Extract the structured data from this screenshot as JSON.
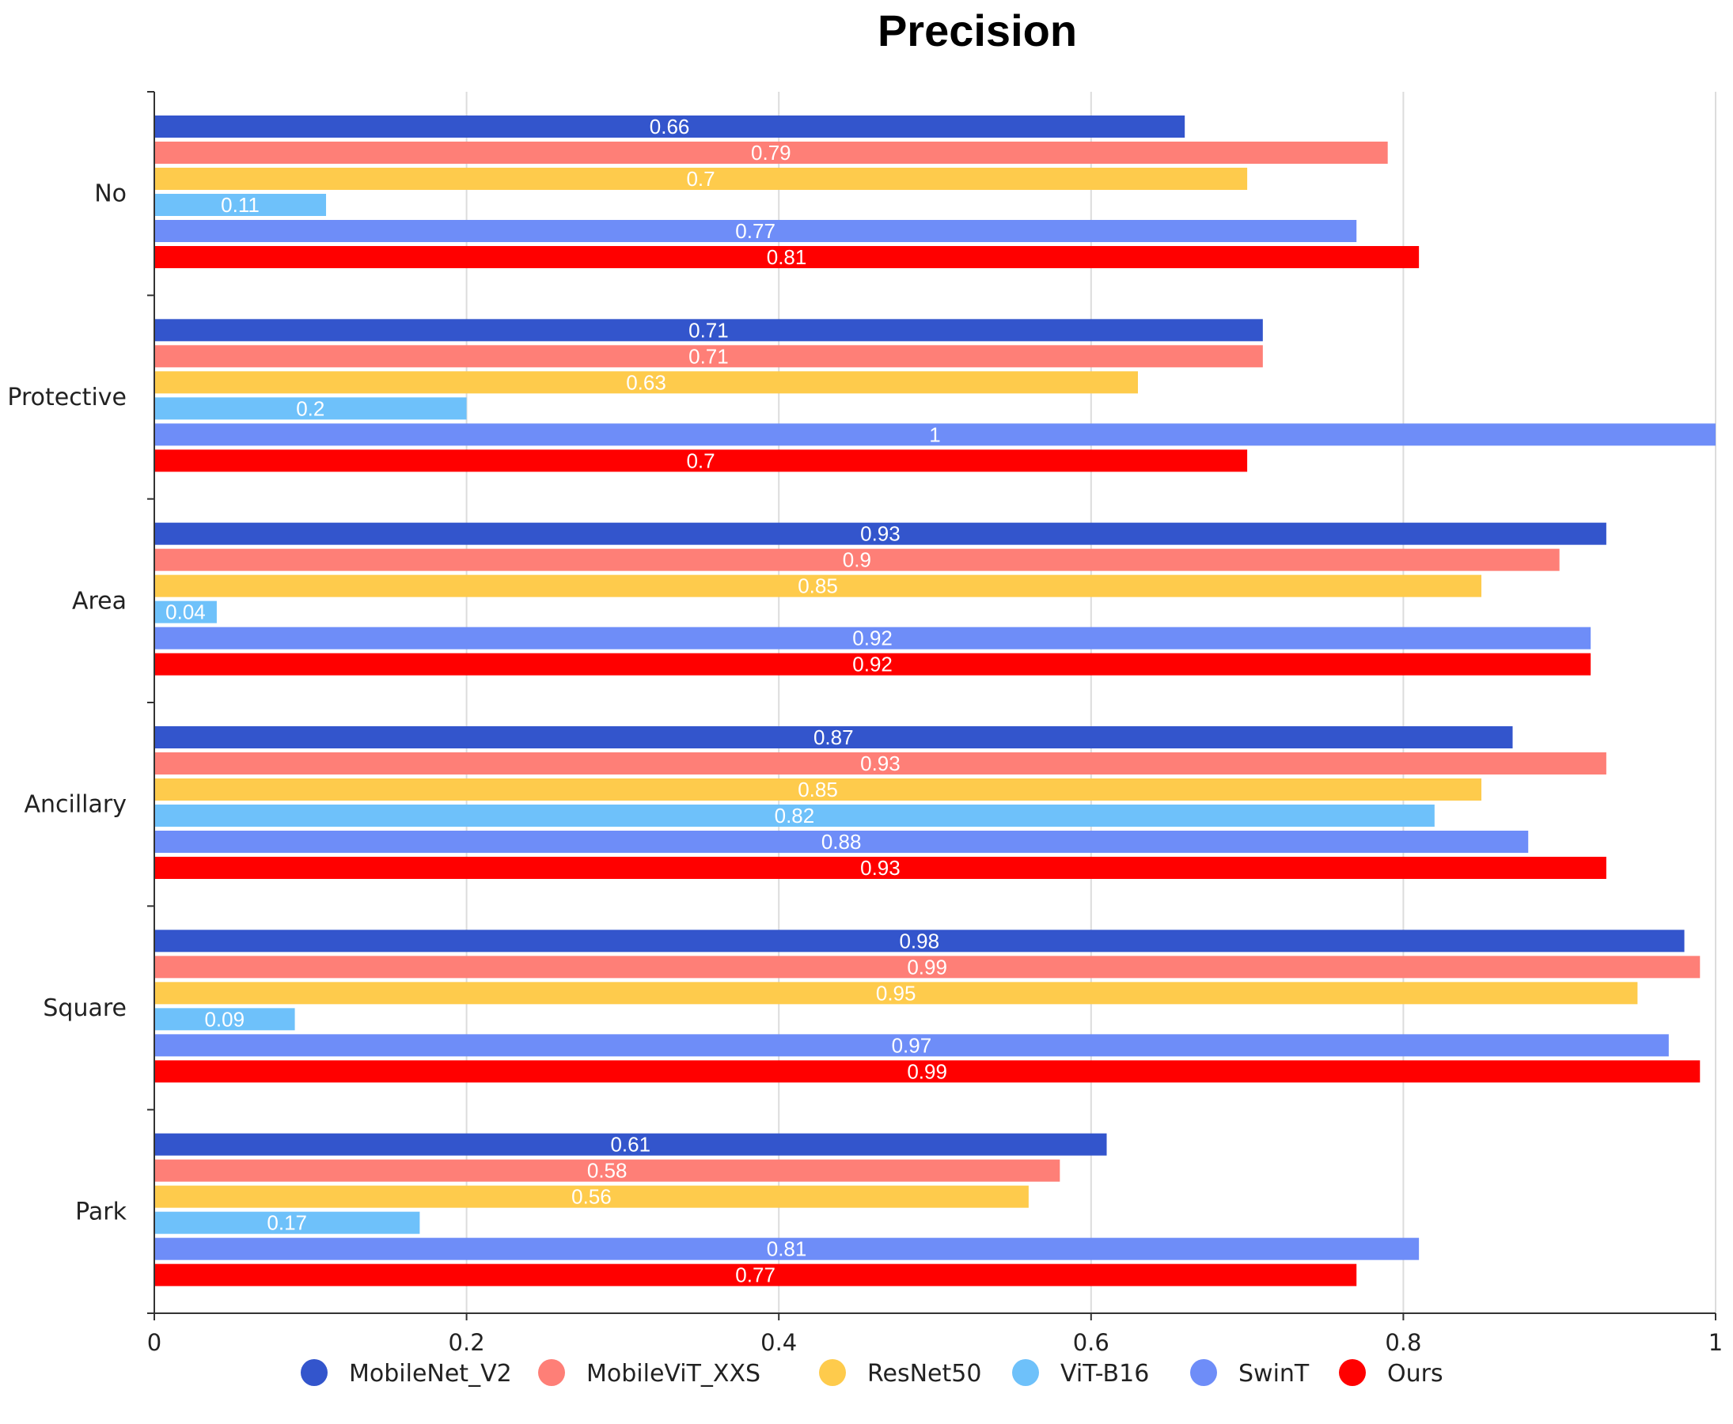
{
  "chart_data": {
    "type": "bar",
    "orientation": "horizontal",
    "title": "Precision",
    "xlabel": "",
    "ylabel": "",
    "xlim": [
      0,
      1
    ],
    "xticks": [
      0,
      0.2,
      0.4,
      0.6,
      0.8,
      1
    ],
    "xtick_labels": [
      "0",
      "0.2",
      "0.4",
      "0.6",
      "0.8",
      "1"
    ],
    "grid": true,
    "legend_position": "bottom",
    "categories": [
      "No",
      "Protective",
      "Area",
      "Ancillary",
      "Square",
      "Park"
    ],
    "series": [
      {
        "name": "MobileNet_V2",
        "color": "#3355cc",
        "values": [
          0.66,
          0.71,
          0.93,
          0.87,
          0.98,
          0.61
        ],
        "labels": [
          "0.66",
          "0.71",
          "0.93",
          "0.87",
          "0.98",
          "0.61"
        ]
      },
      {
        "name": "MobileViT_XXS",
        "color": "#fe7f77",
        "values": [
          0.79,
          0.71,
          0.9,
          0.93,
          0.99,
          0.58
        ],
        "labels": [
          "0.79",
          "0.71",
          "0.9",
          "0.93",
          "0.99",
          "0.58"
        ]
      },
      {
        "name": "ResNet50",
        "color": "#fecb4c",
        "values": [
          0.7,
          0.63,
          0.85,
          0.85,
          0.95,
          0.56
        ],
        "labels": [
          "0.7",
          "0.63",
          "0.85",
          "0.85",
          "0.95",
          "0.56"
        ]
      },
      {
        "name": "ViT-B16",
        "color": "#6ec1fa",
        "values": [
          0.11,
          0.2,
          0.04,
          0.82,
          0.09,
          0.17
        ],
        "labels": [
          "0.11",
          "0.2",
          "0.04",
          "0.82",
          "0.09",
          "0.17"
        ]
      },
      {
        "name": "SwinT",
        "color": "#6e8df8",
        "values": [
          0.77,
          1.0,
          0.92,
          0.88,
          0.97,
          0.81
        ],
        "labels": [
          "0.77",
          "1",
          "0.92",
          "0.88",
          "0.97",
          "0.81"
        ]
      },
      {
        "name": "Ours",
        "color": "#ff0000",
        "values": [
          0.81,
          0.7,
          0.92,
          0.93,
          0.99,
          0.77
        ],
        "labels": [
          "0.81",
          "0.7",
          "0.92",
          "0.93",
          "0.99",
          "0.77"
        ]
      }
    ]
  }
}
